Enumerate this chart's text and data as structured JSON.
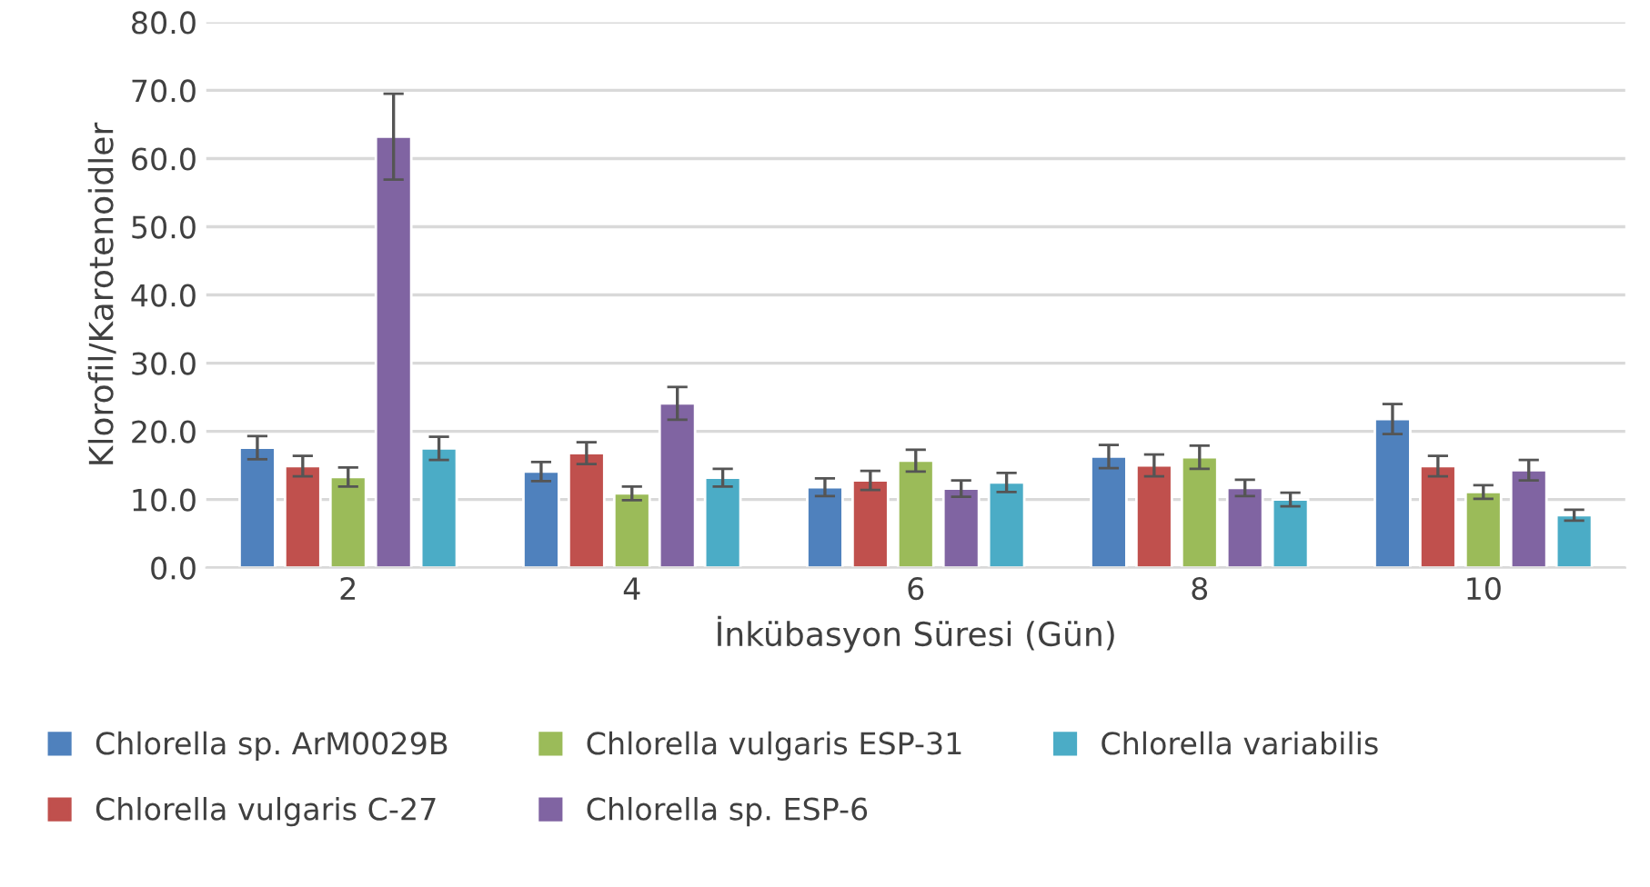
{
  "chart_data": {
    "type": "bar",
    "xlabel": "İnkübasyon Süresi (Gün)",
    "ylabel": "Klorofil/Karotenoidler",
    "categories": [
      "2",
      "4",
      "6",
      "8",
      "10"
    ],
    "series": [
      {
        "name": "Chlorella sp. ArM0029B",
        "color": "#4f81bd",
        "values": [
          17.6,
          14.1,
          11.8,
          16.3,
          21.8
        ],
        "errors": [
          1.7,
          1.4,
          1.3,
          1.7,
          2.2
        ]
      },
      {
        "name": "Chlorella vulgaris C-27",
        "color": "#c0504d",
        "values": [
          14.9,
          16.8,
          12.8,
          15.0,
          14.9
        ],
        "errors": [
          1.5,
          1.6,
          1.4,
          1.6,
          1.5
        ]
      },
      {
        "name": "Chlorella vulgaris ESP-31",
        "color": "#9bbb59",
        "values": [
          13.3,
          10.9,
          15.7,
          16.2,
          11.1
        ],
        "errors": [
          1.4,
          1.0,
          1.6,
          1.7,
          1.0
        ]
      },
      {
        "name": "Chlorella sp. ESP-6",
        "color": "#8064a2",
        "values": [
          63.2,
          24.1,
          11.6,
          11.7,
          14.3
        ],
        "errors": [
          6.3,
          2.4,
          1.2,
          1.2,
          1.5
        ]
      },
      {
        "name": "Chlorella variabilis",
        "color": "#4bacc6",
        "values": [
          17.5,
          13.2,
          12.5,
          10.0,
          7.7
        ],
        "errors": [
          1.7,
          1.3,
          1.4,
          1.0,
          0.8
        ]
      }
    ],
    "ylim": [
      0,
      80
    ],
    "yticks": [
      {
        "value": 0,
        "label": "0.0"
      },
      {
        "value": 10,
        "label": "10.0"
      },
      {
        "value": 20,
        "label": "20.0"
      },
      {
        "value": 30,
        "label": "30.0"
      },
      {
        "value": 40,
        "label": "40.0"
      },
      {
        "value": 50,
        "label": "50.0"
      },
      {
        "value": 60,
        "label": "60.0"
      },
      {
        "value": 70,
        "label": "70.0"
      },
      {
        "value": 80,
        "label": "80.0"
      }
    ],
    "grid": "y",
    "legend": "bottom"
  }
}
